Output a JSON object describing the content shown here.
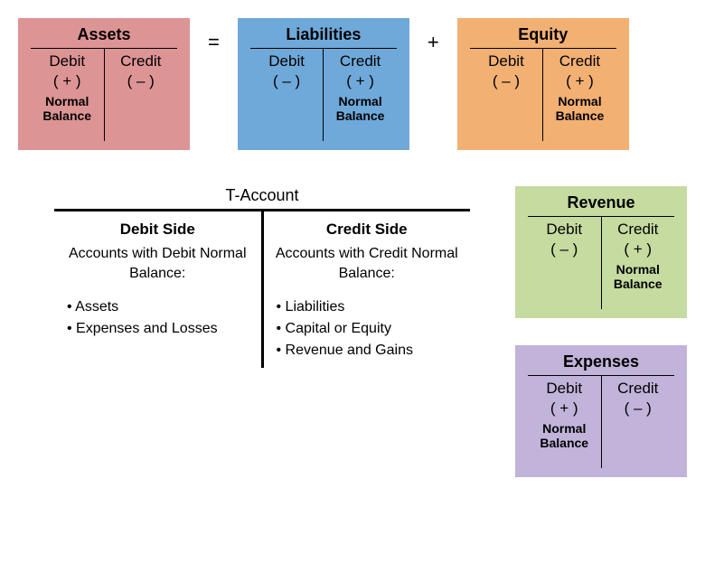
{
  "colors": {
    "assets": "#dd9495",
    "liabilities": "#6fa9d9",
    "equity": "#f2b073",
    "revenue": "#c6dba0",
    "expenses": "#c2b3da",
    "border": "#000000",
    "text": "#000000"
  },
  "operators": {
    "eq": "=",
    "plus": "+"
  },
  "boxes": {
    "assets": {
      "title": "Assets",
      "debit_label": "Debit",
      "credit_label": "Credit",
      "debit_sign": "( + )",
      "credit_sign": "( – )",
      "normal_side": "debit",
      "normal_line1": "Normal",
      "normal_line2": "Balance"
    },
    "liabilities": {
      "title": "Liabilities",
      "debit_label": "Debit",
      "credit_label": "Credit",
      "debit_sign": "( – )",
      "credit_sign": "( + )",
      "normal_side": "credit",
      "normal_line1": "Normal",
      "normal_line2": "Balance"
    },
    "equity": {
      "title": "Equity",
      "debit_label": "Debit",
      "credit_label": "Credit",
      "debit_sign": "( – )",
      "credit_sign": "( + )",
      "normal_side": "credit",
      "normal_line1": "Normal",
      "normal_line2": "Balance"
    },
    "revenue": {
      "title": "Revenue",
      "debit_label": "Debit",
      "credit_label": "Credit",
      "debit_sign": "( – )",
      "credit_sign": "( + )",
      "normal_side": "credit",
      "normal_line1": "Normal",
      "normal_line2": "Balance"
    },
    "expenses": {
      "title": "Expenses",
      "debit_label": "Debit",
      "credit_label": "Credit",
      "debit_sign": "( + )",
      "credit_sign": "( – )",
      "normal_side": "debit",
      "normal_line1": "Normal",
      "normal_line2": "Balance"
    }
  },
  "taccount": {
    "title": "T-Account",
    "debit": {
      "head": "Debit Side",
      "desc": "Accounts with Debit Normal Balance:",
      "items": [
        "Assets",
        "Expenses and Losses"
      ]
    },
    "credit": {
      "head": "Credit Side",
      "desc": "Accounts with Credit Normal Balance:",
      "items": [
        "Liabilities",
        "Capital or Equity",
        "Revenue and Gains"
      ]
    }
  }
}
